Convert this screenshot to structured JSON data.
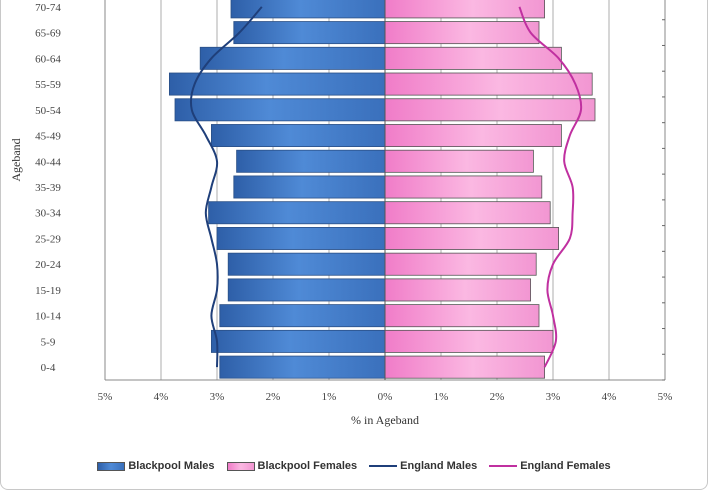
{
  "chart_data": {
    "type": "bar",
    "orientation": "horizontal",
    "xlabel": "% in Ageband",
    "ylabel": "Ageband",
    "xlim": [
      -5,
      5
    ],
    "x_ticks": [
      -5,
      -4,
      -3,
      -2,
      -1,
      0,
      1,
      2,
      3,
      4,
      5
    ],
    "x_tick_labels": [
      "5%",
      "4%",
      "3%",
      "2%",
      "1%",
      "0%",
      "1%",
      "2%",
      "3%",
      "4%",
      "5%"
    ],
    "categories": [
      "0-4",
      "5-9",
      "10-14",
      "15-19",
      "20-24",
      "25-29",
      "30-34",
      "35-39",
      "40-44",
      "45-49",
      "50-54",
      "55-59",
      "60-64",
      "65-69",
      "70-74"
    ],
    "series": [
      {
        "name": "Blackpool Males",
        "kind": "bar",
        "color": "#3f7cc4",
        "values": [
          2.95,
          3.1,
          2.95,
          2.8,
          2.8,
          3.0,
          3.15,
          2.7,
          2.65,
          3.1,
          3.75,
          3.85,
          3.3,
          2.7,
          2.75
        ]
      },
      {
        "name": "Blackpool Females",
        "kind": "bar",
        "color": "#f5a6d8",
        "values": [
          2.85,
          3.0,
          2.75,
          2.6,
          2.7,
          3.1,
          2.95,
          2.8,
          2.65,
          3.15,
          3.75,
          3.7,
          3.15,
          2.75,
          2.85
        ]
      },
      {
        "name": "England Males",
        "kind": "line",
        "color": "#1f3f7a",
        "values": [
          3.0,
          3.0,
          3.1,
          3.0,
          3.0,
          3.1,
          3.2,
          3.1,
          3.0,
          3.2,
          3.45,
          3.4,
          3.1,
          2.6,
          2.2
        ]
      },
      {
        "name": "England Females",
        "kind": "line",
        "color": "#c030a0",
        "values": [
          2.85,
          3.05,
          3.0,
          2.9,
          3.0,
          3.3,
          3.35,
          3.35,
          3.2,
          3.3,
          3.5,
          3.4,
          3.1,
          2.6,
          2.4
        ]
      }
    ],
    "grid": true,
    "legend_position": "bottom"
  }
}
